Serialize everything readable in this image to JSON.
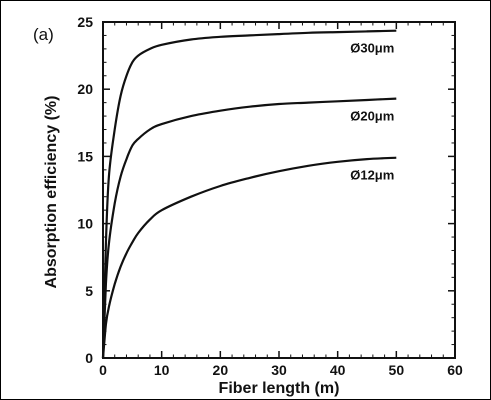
{
  "chart_data": {
    "type": "line",
    "panel_label": "(a)",
    "xlabel": "Fiber length (m)",
    "ylabel": "Absorption efficiency (%)",
    "xlim": [
      0,
      60
    ],
    "ylim": [
      0,
      25
    ],
    "xticks": [
      0,
      10,
      20,
      30,
      40,
      50,
      60
    ],
    "yticks": [
      0,
      5,
      10,
      15,
      20,
      25
    ],
    "grid": false,
    "series": [
      {
        "name": "Ø30μm",
        "x": [
          0,
          0.5,
          1,
          2,
          3,
          4,
          5,
          6,
          8,
          10,
          15,
          20,
          25,
          30,
          35,
          40,
          45,
          50
        ],
        "y": [
          0,
          8.5,
          13.5,
          17.0,
          19.5,
          21.0,
          22.0,
          22.5,
          23.0,
          23.3,
          23.7,
          23.9,
          24.0,
          24.1,
          24.2,
          24.25,
          24.3,
          24.35
        ]
      },
      {
        "name": "Ø20μm",
        "x": [
          0,
          0.5,
          1,
          2,
          3,
          4,
          5,
          6,
          8,
          10,
          15,
          20,
          25,
          30,
          35,
          40,
          45,
          50
        ],
        "y": [
          0,
          5.5,
          8.5,
          11.5,
          13.5,
          14.8,
          15.8,
          16.3,
          17.0,
          17.4,
          18.0,
          18.4,
          18.7,
          18.9,
          19.0,
          19.1,
          19.2,
          19.3
        ]
      },
      {
        "name": "Ø12μm",
        "x": [
          0,
          0.5,
          1,
          2,
          3,
          4,
          5,
          6,
          8,
          10,
          15,
          20,
          25,
          30,
          35,
          40,
          45,
          50
        ],
        "y": [
          0,
          2.5,
          3.8,
          5.5,
          6.8,
          7.8,
          8.6,
          9.3,
          10.3,
          11.0,
          12.0,
          12.8,
          13.4,
          13.9,
          14.3,
          14.6,
          14.8,
          14.9
        ]
      }
    ]
  },
  "colors": {
    "line": "#111111",
    "axis": "#111111",
    "background": "#ffffff"
  }
}
